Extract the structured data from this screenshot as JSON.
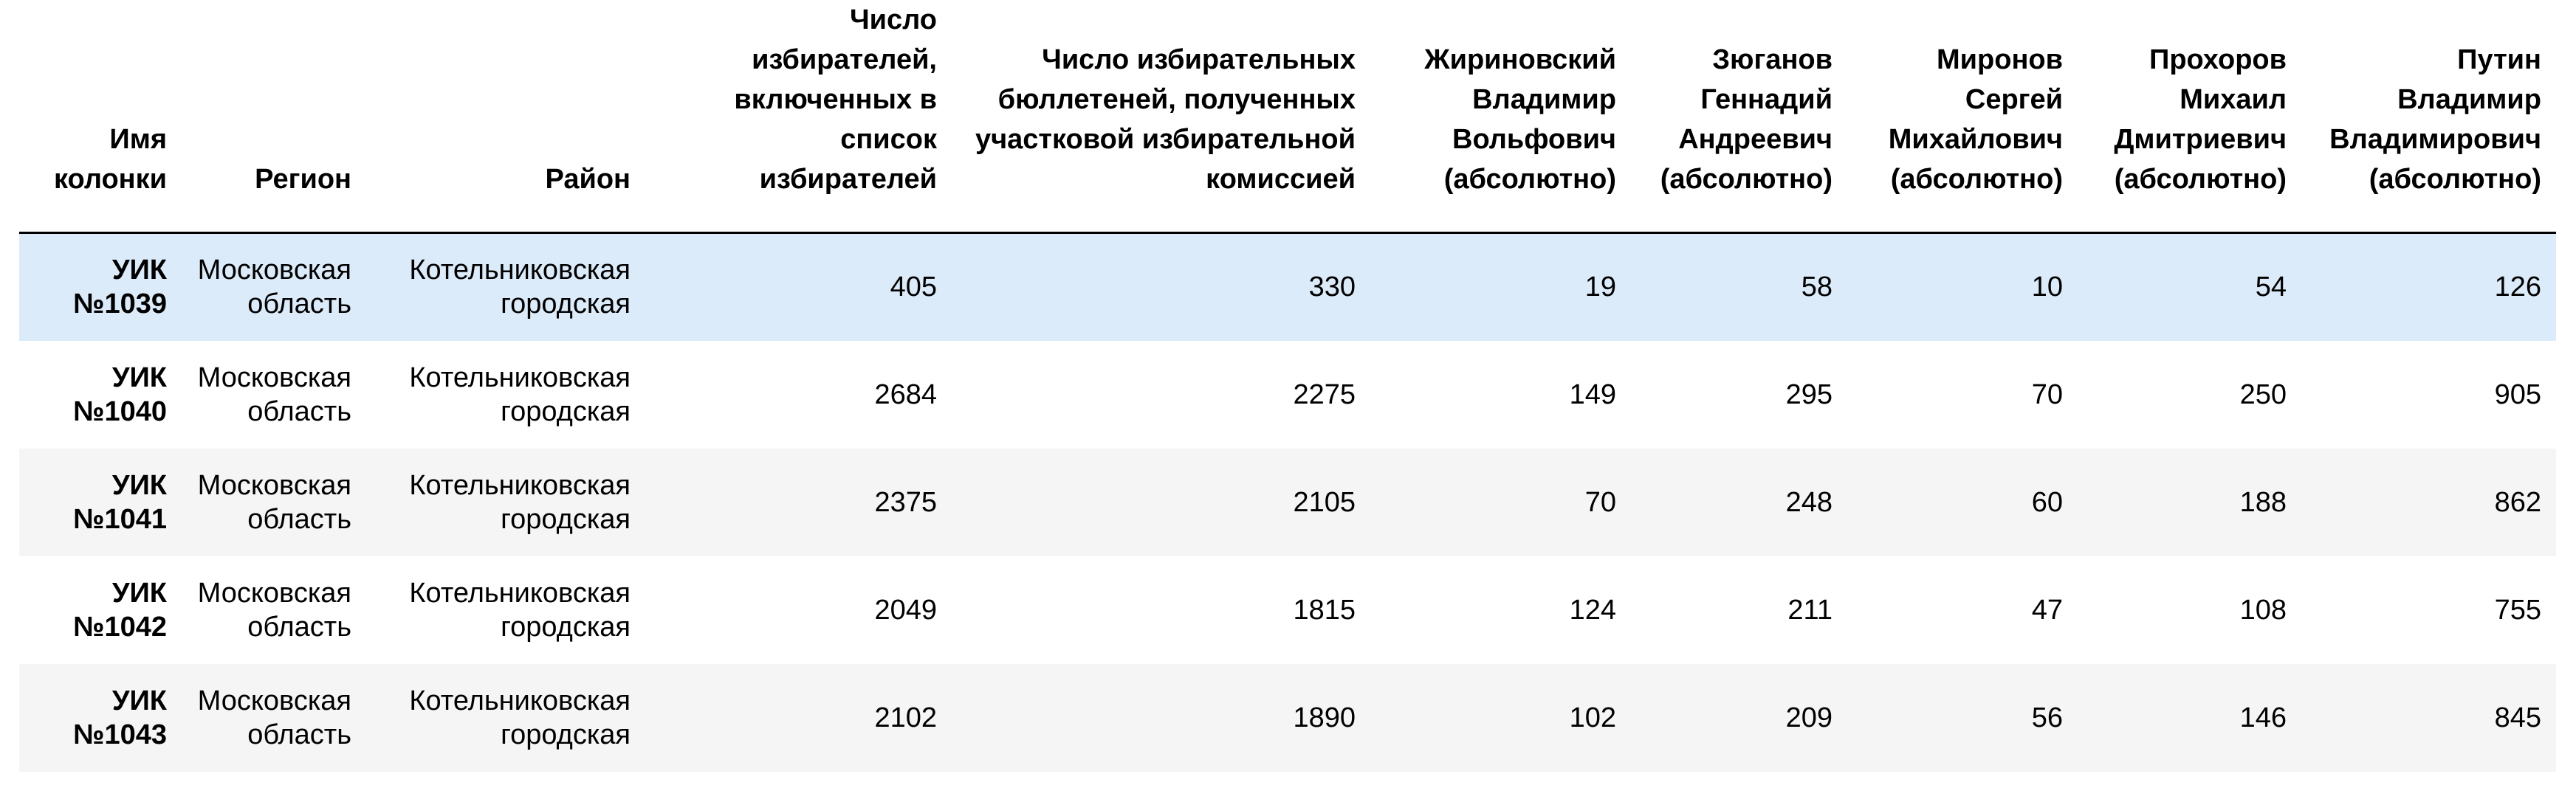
{
  "table": {
    "columns": [
      "Имя колонки",
      "Регион",
      "Район",
      "Число избирателей, включенных в список избирателей",
      "Число избирательных бюллетеней, полученных участковой избирательной комиссией",
      "Жириновский Владимир Вольфович (абсолютно)",
      "Зюганов Геннадий Андреевич (абсолютно)",
      "Миронов Сергей Михайлович (абсолютно)",
      "Прохоров Михаил Дмитриевич (абсолютно)",
      "Путин Владимир Владимирович (абсолютно)"
    ],
    "rows": [
      [
        "УИК №1039",
        "Московская область",
        "Котельниковская городская",
        "405",
        "330",
        "19",
        "58",
        "10",
        "54",
        "126"
      ],
      [
        "УИК №1040",
        "Московская область",
        "Котельниковская городская",
        "2684",
        "2275",
        "149",
        "295",
        "70",
        "250",
        "905"
      ],
      [
        "УИК №1041",
        "Московская область",
        "Котельниковская городская",
        "2375",
        "2105",
        "70",
        "248",
        "60",
        "188",
        "862"
      ],
      [
        "УИК №1042",
        "Московская область",
        "Котельниковская городская",
        "2049",
        "1815",
        "124",
        "211",
        "47",
        "108",
        "755"
      ],
      [
        "УИК №1043",
        "Московская область",
        "Котельниковская городская",
        "2102",
        "1890",
        "102",
        "209",
        "56",
        "146",
        "845"
      ]
    ],
    "highlighted_row": 0,
    "colors": {
      "highlight": "#dcebf9",
      "stripe": "#f5f5f5",
      "header_rule": "#000000"
    }
  }
}
